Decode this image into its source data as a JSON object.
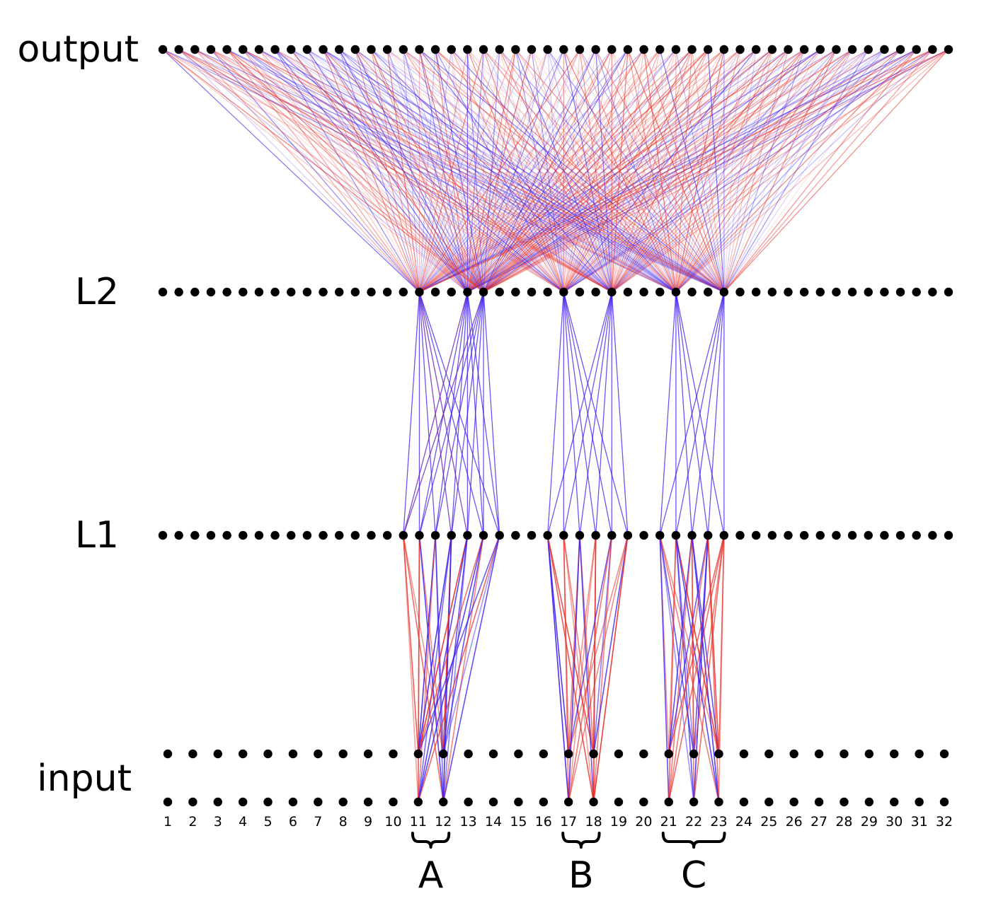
{
  "layers": {
    "output": "output",
    "l2": "L2",
    "l1": "L1",
    "input": "input"
  },
  "input_indices": [
    "1",
    "2",
    "3",
    "4",
    "5",
    "6",
    "7",
    "8",
    "9",
    "10",
    "11",
    "12",
    "13",
    "14",
    "15",
    "16",
    "17",
    "18",
    "19",
    "20",
    "21",
    "22",
    "23",
    "24",
    "25",
    "26",
    "27",
    "28",
    "29",
    "30",
    "31",
    "32"
  ],
  "groups": [
    {
      "label": "A",
      "from": 11,
      "to": 12
    },
    {
      "label": "B",
      "from": 17,
      "to": 18
    },
    {
      "label": "C",
      "from": 21,
      "to": 23
    }
  ],
  "active": {
    "l2": [
      16,
      19,
      20,
      25,
      28,
      32,
      35
    ],
    "l1_blocks": [
      [
        15,
        16,
        17,
        18,
        19,
        20,
        21
      ],
      [
        24,
        25,
        26,
        27,
        28,
        29
      ],
      [
        31,
        32,
        33,
        34,
        35
      ]
    ]
  },
  "colors": {
    "positive": "#e8322a",
    "negative": "#3a1ef0",
    "node": "#000000"
  }
}
